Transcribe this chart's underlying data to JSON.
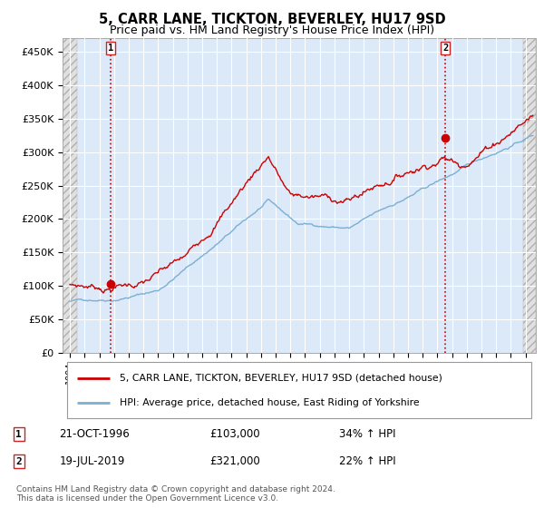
{
  "title": "5, CARR LANE, TICKTON, BEVERLEY, HU17 9SD",
  "subtitle": "Price paid vs. HM Land Registry's House Price Index (HPI)",
  "red_label": "5, CARR LANE, TICKTON, BEVERLEY, HU17 9SD (detached house)",
  "blue_label": "HPI: Average price, detached house, East Riding of Yorkshire",
  "ann1_date": "21-OCT-1996",
  "ann1_price": "£103,000",
  "ann1_hpi": "34% ↑ HPI",
  "ann1_x": 1996.8,
  "ann1_y": 103000,
  "ann2_date": "19-JUL-2019",
  "ann2_price": "£321,000",
  "ann2_hpi": "22% ↑ HPI",
  "ann2_x": 2019.55,
  "ann2_y": 321000,
  "footer_line1": "Contains HM Land Registry data © Crown copyright and database right 2024.",
  "footer_line2": "This data is licensed under the Open Government Licence v3.0.",
  "ylim": [
    0,
    470000
  ],
  "yticks": [
    0,
    50000,
    100000,
    150000,
    200000,
    250000,
    300000,
    350000,
    400000,
    450000
  ],
  "ytick_labels": [
    "£0",
    "£50K",
    "£100K",
    "£150K",
    "£200K",
    "£250K",
    "£300K",
    "£350K",
    "£400K",
    "£450K"
  ],
  "xlim_start": 1993.5,
  "xlim_end": 2025.7,
  "hatch_left_end": 1994.5,
  "hatch_right_start": 2024.85,
  "bg_color": "#dce9f8",
  "red_color": "#cc0000",
  "blue_color": "#7bafd4",
  "grid_color": "#ffffff",
  "hatch_face": "#e8e8e8",
  "hatch_edge": "#aaaaaa"
}
